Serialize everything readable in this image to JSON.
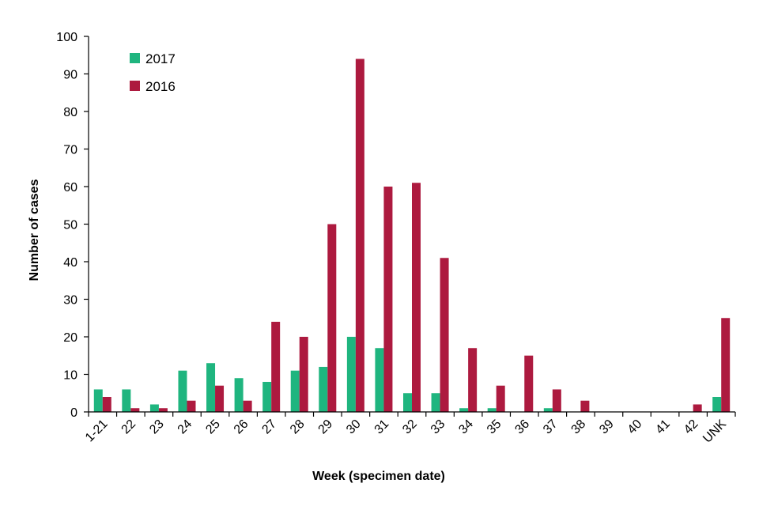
{
  "chart_data": {
    "type": "bar",
    "title": "",
    "xlabel": "Week (specimen date)",
    "ylabel": "Number of cases",
    "ylim": [
      0,
      100
    ],
    "yticks": [
      0,
      10,
      20,
      30,
      40,
      50,
      60,
      70,
      80,
      90,
      100
    ],
    "grid": false,
    "legend_position": "top-left",
    "categories": [
      "1-21",
      "22",
      "23",
      "24",
      "25",
      "26",
      "27",
      "28",
      "29",
      "30",
      "31",
      "32",
      "33",
      "34",
      "35",
      "36",
      "37",
      "38",
      "39",
      "40",
      "41",
      "42",
      "UNK"
    ],
    "series": [
      {
        "name": "2017",
        "color": "#1fb57f",
        "values": [
          6,
          6,
          2,
          11,
          13,
          9,
          8,
          11,
          12,
          20,
          17,
          5,
          5,
          1,
          1,
          0,
          1,
          0,
          0,
          0,
          0,
          0,
          4
        ]
      },
      {
        "name": "2016",
        "color": "#ad1a3f",
        "values": [
          4,
          1,
          1,
          3,
          7,
          3,
          24,
          20,
          50,
          94,
          60,
          61,
          41,
          17,
          7,
          15,
          6,
          3,
          0,
          0,
          0,
          2,
          25
        ]
      }
    ]
  }
}
